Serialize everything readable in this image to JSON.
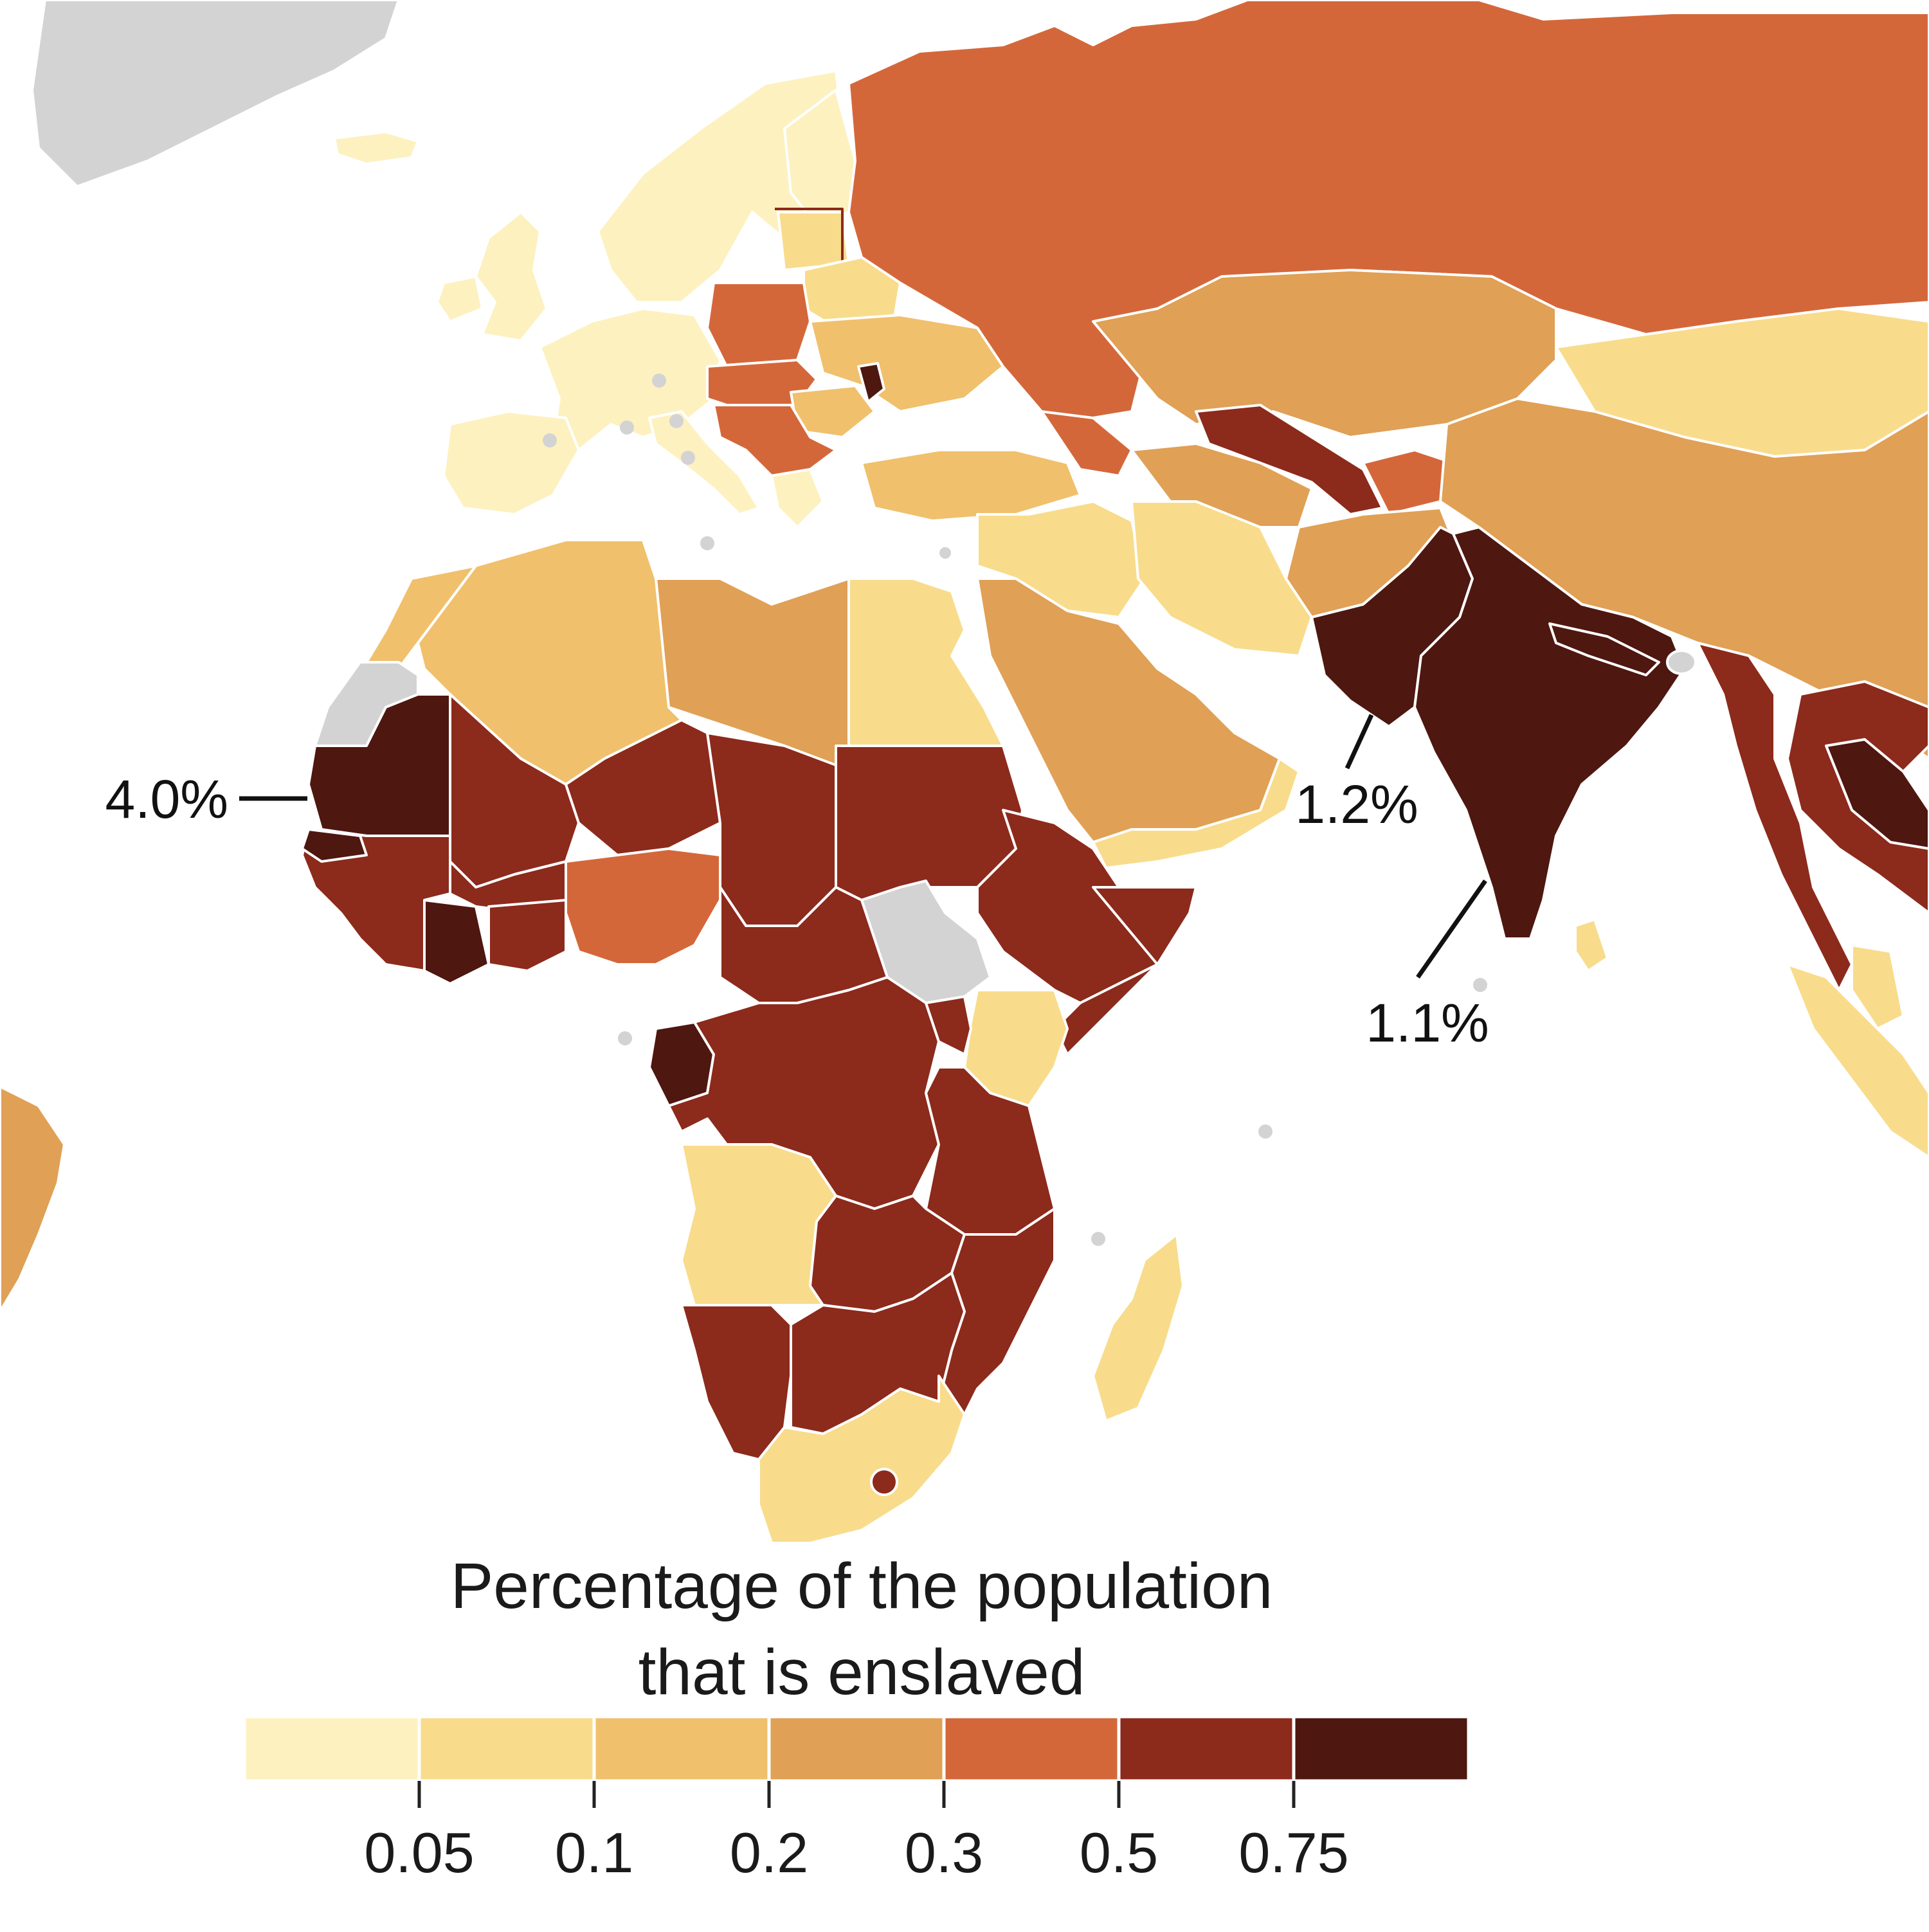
{
  "legend": {
    "title_line1": "Percentage of the population",
    "title_line2": "that is enslaved",
    "bins": [
      {
        "color": "#fdf1c0"
      },
      {
        "color": "#f8dc8c",
        "tick": "0.05"
      },
      {
        "color": "#f0c06c",
        "tick": "0.1"
      },
      {
        "color": "#e0a055",
        "tick": "0.2"
      },
      {
        "color": "#d4673a",
        "tick": "0.3"
      },
      {
        "color": "#8c2a1c",
        "tick": "0.5"
      },
      {
        "color": "#4e1710",
        "tick": "0.75"
      }
    ]
  },
  "callouts": [
    {
      "id": "mauritania",
      "label": "4.0%"
    },
    {
      "id": "pakistan",
      "label": "1.2%"
    },
    {
      "id": "india",
      "label": "1.1%"
    }
  ],
  "colors": {
    "no_data": "#d3d3d3",
    "border": "#ffffff",
    "ocean": "#ffffff"
  }
}
